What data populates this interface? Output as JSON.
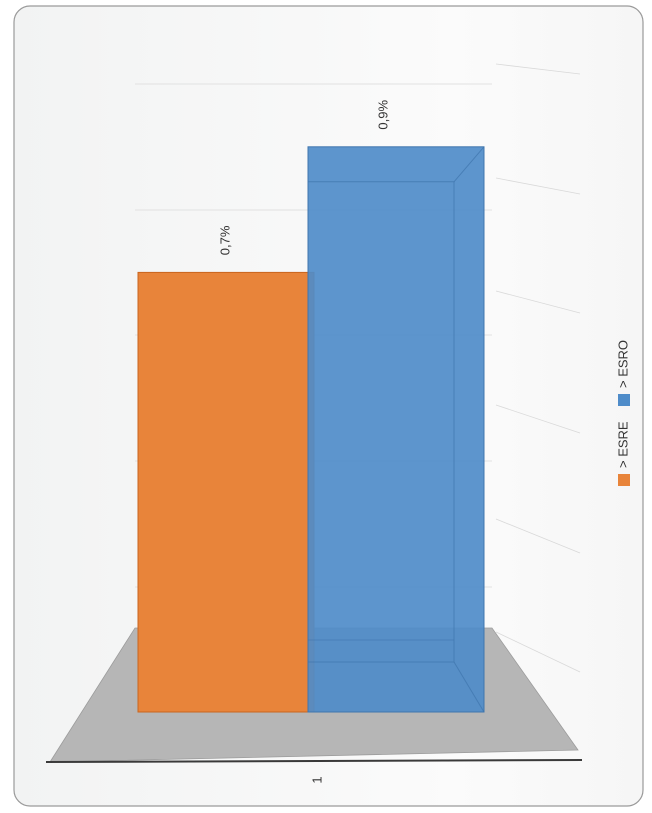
{
  "chart_data": {
    "type": "bar",
    "orientation": "rotated-90-ccw",
    "categories": [
      "1"
    ],
    "series": [
      {
        "name": "> ESRE",
        "values": [
          0.7
        ],
        "color": "#E8843A",
        "label": "0,7%"
      },
      {
        "name": "> ESRO",
        "values": [
          0.9
        ],
        "color": "#4F8CC9",
        "label": "0,9%"
      }
    ],
    "value_unit": "%",
    "ylim": [
      0,
      1.1
    ],
    "grid": true,
    "legend_placement": "right",
    "style": "3d-column"
  }
}
